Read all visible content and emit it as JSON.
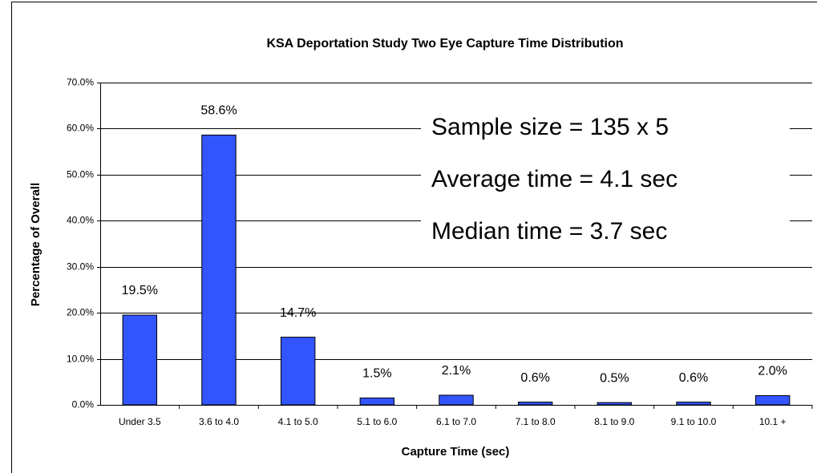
{
  "chart_data": {
    "type": "bar",
    "title": "KSA Deportation Study Two Eye Capture Time Distribution",
    "x_label": "Capture Time (sec)",
    "y_label": "Percentage of Overall",
    "categories": [
      "Under 3.5",
      "3.6 to 4.0",
      "4.1 to 5.0",
      "5.1 to 6.0",
      "6.1 to 7.0",
      "7.1 to 8.0",
      "8.1 to 9.0",
      "9.1 to 10.0",
      "10.1 +"
    ],
    "values": [
      19.5,
      58.6,
      14.7,
      1.5,
      2.1,
      0.6,
      0.5,
      0.6,
      2.0
    ],
    "value_labels": [
      "19.5%",
      "58.6%",
      "14.7%",
      "1.5%",
      "2.1%",
      "0.6%",
      "0.5%",
      "0.6%",
      "2.0%"
    ],
    "color": "#3355ff",
    "ylim": [
      0,
      70
    ],
    "yticks": [
      {
        "value": 0,
        "label": "0.0%"
      },
      {
        "value": 10,
        "label": "10.0%"
      },
      {
        "value": 20,
        "label": "20.0%"
      },
      {
        "value": 30,
        "label": "30.0%"
      },
      {
        "value": 40,
        "label": "40.0%"
      },
      {
        "value": 50,
        "label": "50.0%"
      },
      {
        "value": 60,
        "label": "60.0%"
      },
      {
        "value": 70,
        "label": "70.0%"
      }
    ],
    "grid": true,
    "annotations": [
      "Sample size = 135 x 5",
      "Average time = 4.1 sec",
      "Median time = 3.7 sec"
    ]
  }
}
